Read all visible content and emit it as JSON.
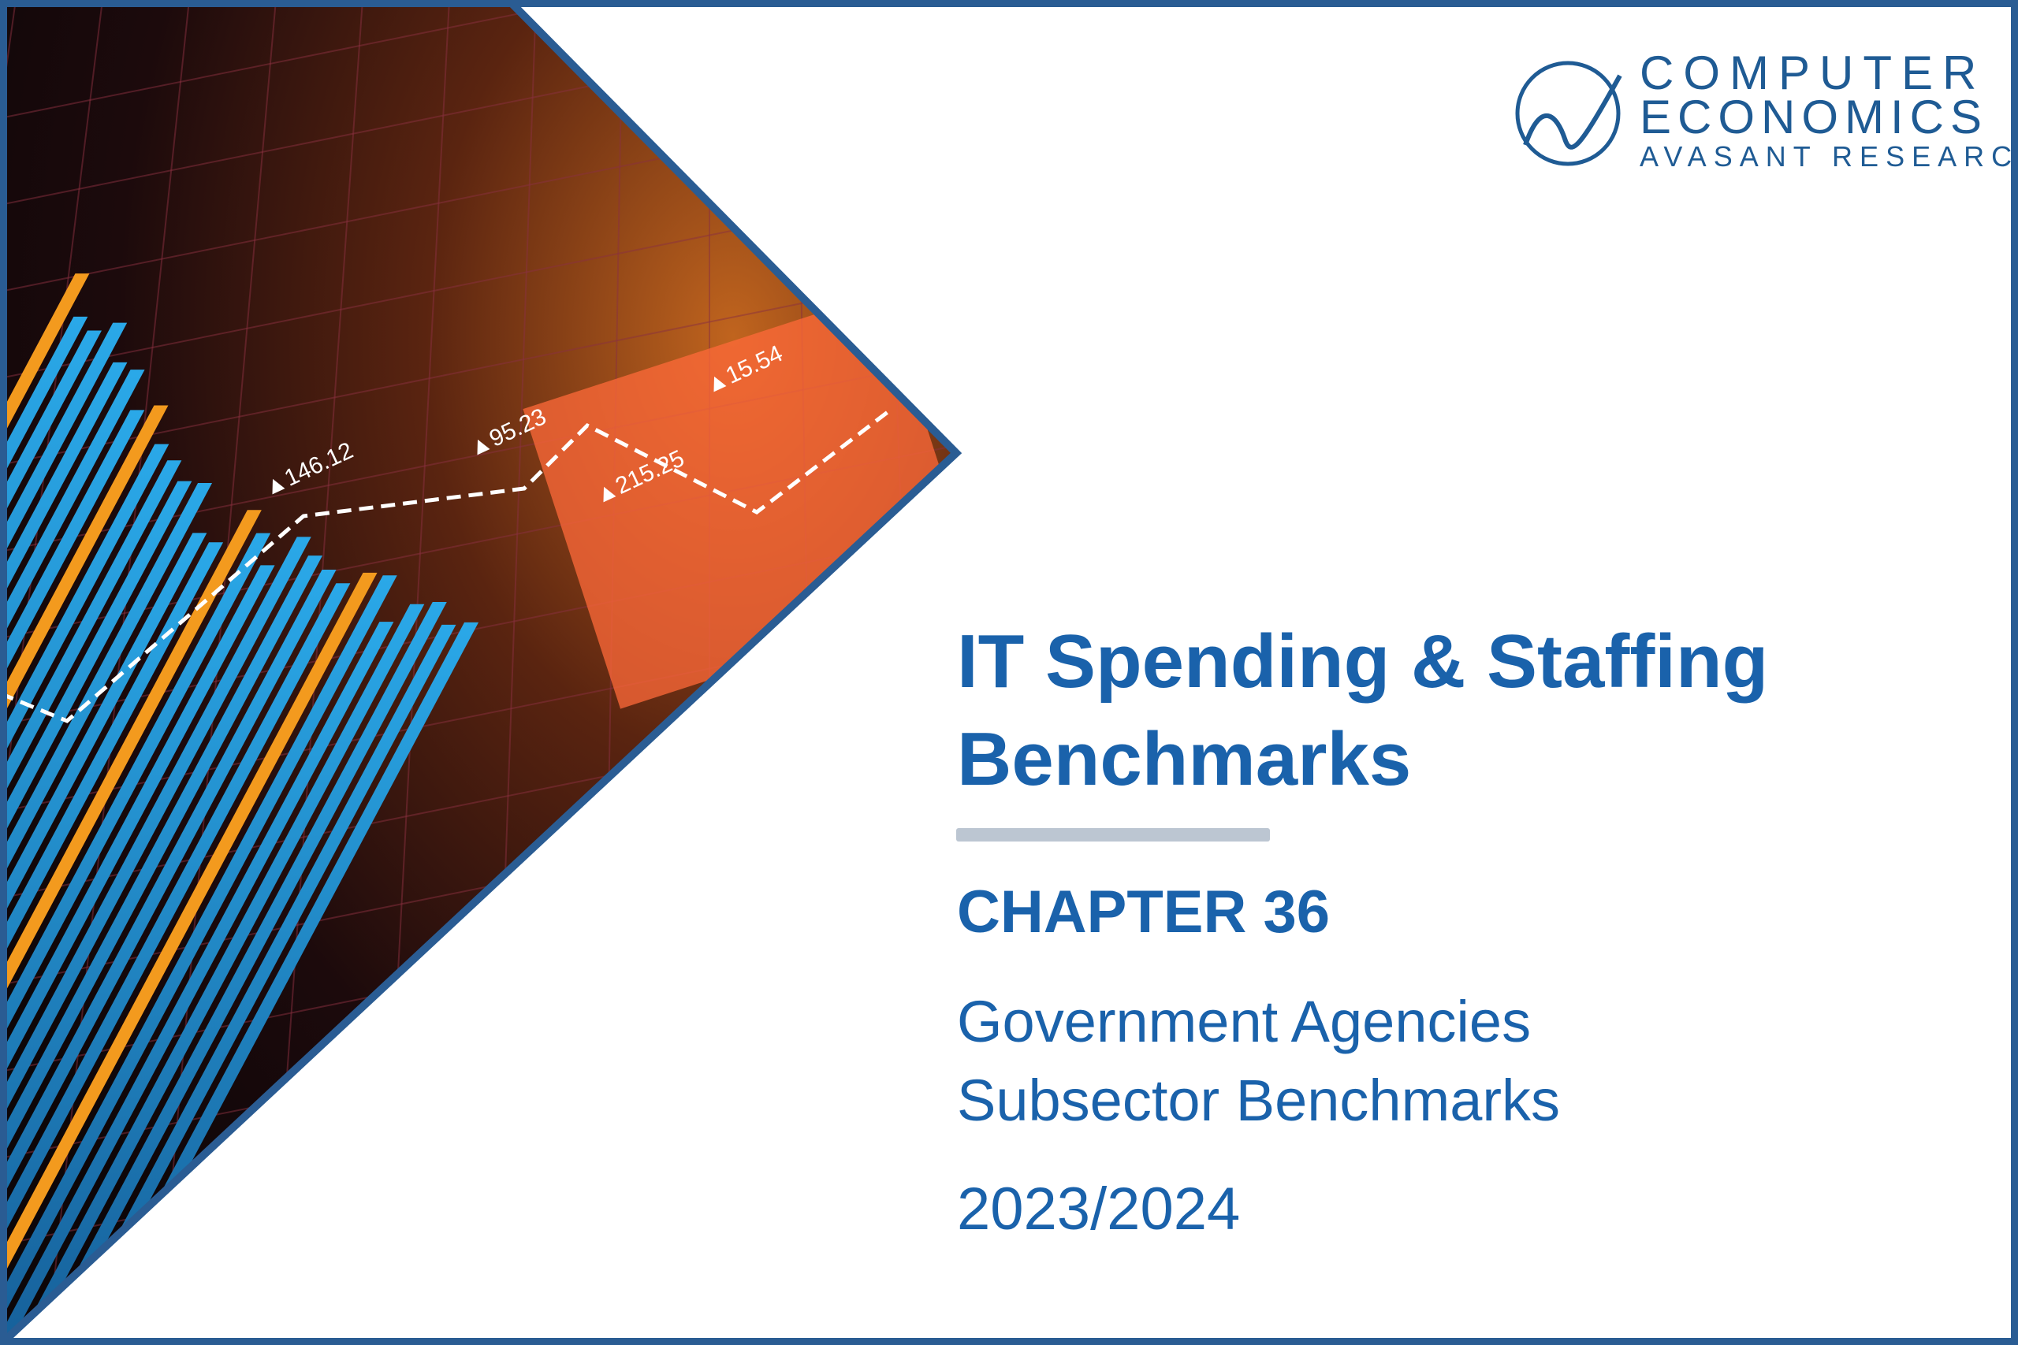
{
  "logo": {
    "line1": "COMPUTER",
    "line2": "ECONOMICS",
    "line3": "AVASANT RESEARCH"
  },
  "title": {
    "line1": "IT Spending & Staffing",
    "line2": "Benchmarks"
  },
  "chapter": "CHAPTER 36",
  "subtitle": {
    "line1": "Government Agencies",
    "line2": "Subsector Benchmarks"
  },
  "year": "2023/2024",
  "image_labels": [
    "▲146.12",
    "▲95.23",
    "▲215.25",
    "▲15.54"
  ],
  "colors": {
    "brand_blue": "#1a62ab",
    "frame_blue": "#2a5c93",
    "rule_gray": "#bcc6d2",
    "bar_blue": "#1e9ad6",
    "bar_orange": "#f39a1e"
  }
}
